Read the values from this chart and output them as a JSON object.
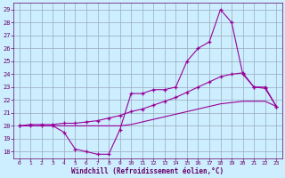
{
  "bg_color": "#cceeff",
  "grid_color": "#99aabb",
  "line_color": "#990099",
  "marker_color": "#990099",
  "xlabel": "Windchill (Refroidissement éolien,°C)",
  "xlabel_color": "#660066",
  "tick_color": "#660066",
  "xlim": [
    -0.5,
    23.5
  ],
  "ylim": [
    17.5,
    29.5
  ],
  "yticks": [
    18,
    19,
    20,
    21,
    22,
    23,
    24,
    25,
    26,
    27,
    28,
    29
  ],
  "xticks": [
    0,
    1,
    2,
    3,
    4,
    5,
    6,
    7,
    8,
    9,
    10,
    11,
    12,
    13,
    14,
    15,
    16,
    17,
    18,
    19,
    20,
    21,
    22,
    23
  ],
  "line1_x": [
    0,
    1,
    2,
    3,
    4,
    5,
    6,
    7,
    8,
    9,
    10,
    11,
    12,
    13,
    14,
    15,
    16,
    17,
    18,
    19,
    20,
    21,
    22,
    23
  ],
  "line1_y": [
    20.0,
    20.1,
    20.1,
    20.1,
    20.2,
    20.2,
    20.3,
    20.4,
    20.6,
    20.8,
    21.1,
    21.3,
    21.6,
    21.9,
    22.2,
    22.6,
    23.0,
    23.4,
    23.8,
    24.0,
    24.1,
    23.0,
    23.0,
    21.5
  ],
  "line2_x": [
    0,
    1,
    2,
    3,
    4,
    5,
    6,
    7,
    8,
    9,
    10,
    11,
    12,
    13,
    14,
    15,
    16,
    17,
    18,
    19,
    20,
    21,
    22,
    23
  ],
  "line2_y": [
    20.0,
    20.0,
    20.0,
    20.0,
    20.0,
    20.0,
    20.0,
    20.0,
    20.0,
    20.0,
    20.1,
    20.3,
    20.5,
    20.7,
    20.9,
    21.1,
    21.3,
    21.5,
    21.7,
    21.8,
    21.9,
    21.9,
    21.9,
    21.5
  ],
  "line3_x": [
    0,
    1,
    2,
    3,
    4,
    5,
    6,
    7,
    8,
    9,
    10,
    11,
    12,
    13,
    14,
    15,
    16,
    17,
    18,
    19,
    20,
    21,
    22,
    23
  ],
  "line3_y": [
    20.0,
    20.0,
    20.0,
    20.0,
    19.5,
    18.2,
    18.0,
    17.8,
    17.8,
    19.7,
    22.5,
    22.5,
    22.8,
    22.8,
    23.0,
    25.0,
    26.0,
    26.5,
    29.0,
    28.0,
    24.0,
    23.0,
    22.9,
    21.5
  ]
}
